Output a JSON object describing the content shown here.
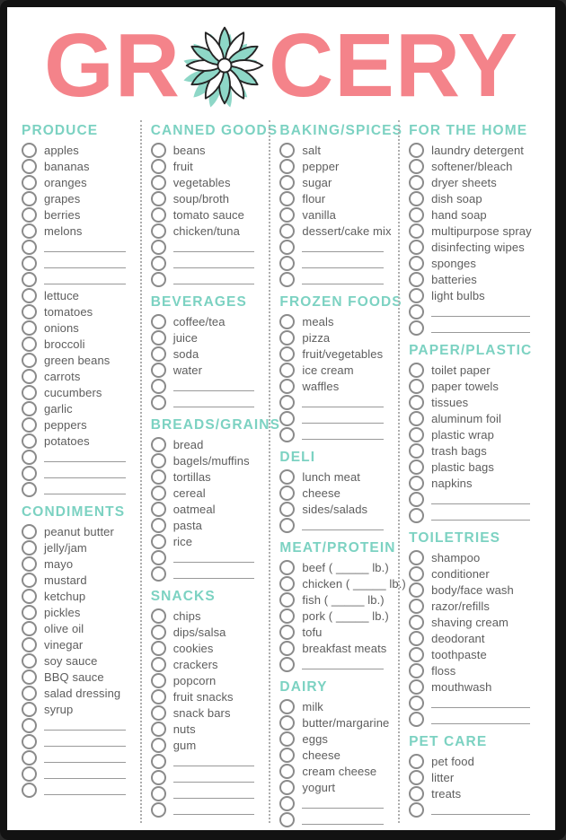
{
  "title": {
    "left": "GR",
    "right": "CERY"
  },
  "colors": {
    "coral": "#f4838a",
    "teal": "#7cd2c2",
    "flower_teal": "#8ed7c7",
    "ink": "#5d5d5d"
  },
  "icons": {
    "flower": "flower-icon",
    "checkbox": "checkbox-circle"
  },
  "columns": [
    {
      "sections": [
        {
          "title": "PRODUCE",
          "items": [
            "apples",
            "bananas",
            "oranges",
            "grapes",
            "berries",
            "melons",
            "",
            "",
            "",
            "lettuce",
            "tomatoes",
            "onions",
            "broccoli",
            "green beans",
            "carrots",
            "cucumbers",
            "garlic",
            "peppers",
            "potatoes",
            "",
            "",
            ""
          ]
        },
        {
          "title": "CONDIMENTS",
          "items": [
            "peanut butter",
            "jelly/jam",
            "mayo",
            "mustard",
            "ketchup",
            "pickles",
            "olive oil",
            "vinegar",
            "soy sauce",
            "BBQ sauce",
            "salad dressing",
            "syrup",
            "",
            "",
            "",
            "",
            ""
          ]
        }
      ]
    },
    {
      "sections": [
        {
          "title": "CANNED GOODS",
          "items": [
            "beans",
            "fruit",
            "vegetables",
            "soup/broth",
            "tomato sauce",
            "chicken/tuna",
            "",
            "",
            ""
          ]
        },
        {
          "title": "BEVERAGES",
          "items": [
            "coffee/tea",
            "juice",
            "soda",
            "water",
            "",
            ""
          ]
        },
        {
          "title": "BREADS/GRAINS",
          "items": [
            "bread",
            "bagels/muffins",
            "tortillas",
            "cereal",
            "oatmeal",
            "pasta",
            "rice",
            "",
            ""
          ]
        },
        {
          "title": "SNACKS",
          "items": [
            "chips",
            "dips/salsa",
            "cookies",
            "crackers",
            "popcorn",
            "fruit snacks",
            "snack bars",
            "nuts",
            "gum",
            "",
            "",
            "",
            ""
          ]
        }
      ]
    },
    {
      "sections": [
        {
          "title": "BAKING/SPICES",
          "items": [
            "salt",
            "pepper",
            "sugar",
            "flour",
            "vanilla",
            "dessert/cake mix",
            "",
            "",
            ""
          ]
        },
        {
          "title": "FROZEN FOODS",
          "items": [
            "meals",
            "pizza",
            "fruit/vegetables",
            "ice cream",
            "waffles",
            "",
            "",
            ""
          ]
        },
        {
          "title": "DELI",
          "items": [
            "lunch meat",
            "cheese",
            "sides/salads",
            ""
          ]
        },
        {
          "title": "MEAT/PROTEIN",
          "items": [
            "beef ( _____ lb.)",
            "chicken ( _____ lb.)",
            "fish ( _____ lb.)",
            "pork ( _____ lb.)",
            "tofu",
            "breakfast meats",
            ""
          ]
        },
        {
          "title": "DAIRY",
          "items": [
            "milk",
            "butter/margarine",
            "eggs",
            "cheese",
            "cream cheese",
            "yogurt",
            "",
            ""
          ]
        }
      ]
    },
    {
      "sections": [
        {
          "title": "FOR THE HOME",
          "items": [
            "laundry detergent",
            "softener/bleach",
            "dryer sheets",
            "dish soap",
            "hand soap",
            "multipurpose spray",
            "disinfecting wipes",
            "sponges",
            "batteries",
            "light bulbs",
            "",
            ""
          ]
        },
        {
          "title": "PAPER/PLASTIC",
          "items": [
            "toilet paper",
            "paper towels",
            "tissues",
            "aluminum foil",
            "plastic wrap",
            "trash bags",
            "plastic bags",
            "napkins",
            "",
            ""
          ]
        },
        {
          "title": "TOILETRIES",
          "items": [
            "shampoo",
            "conditioner",
            "body/face wash",
            "razor/refills",
            "shaving cream",
            "deodorant",
            "toothpaste",
            "floss",
            "mouthwash",
            "",
            ""
          ]
        },
        {
          "title": "PET CARE",
          "items": [
            "pet food",
            "litter",
            "treats",
            ""
          ]
        }
      ]
    }
  ]
}
